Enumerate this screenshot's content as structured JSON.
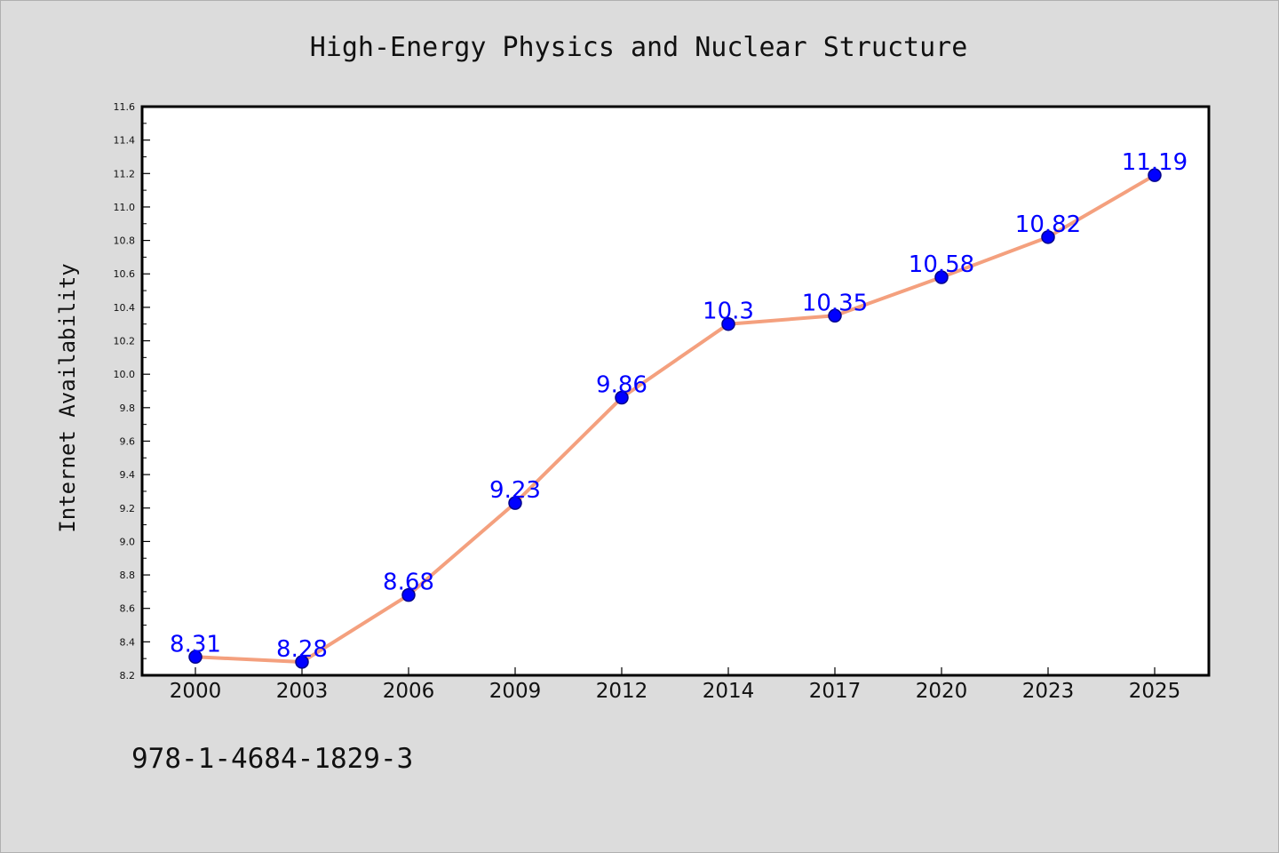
{
  "chart_data": {
    "type": "line",
    "title": "High-Energy Physics and Nuclear Structure",
    "xlabel": "",
    "ylabel": "Internet Availability",
    "categories": [
      "2000",
      "2003",
      "2006",
      "2009",
      "2012",
      "2014",
      "2017",
      "2020",
      "2023",
      "2025"
    ],
    "series": [
      {
        "values": [
          8.31,
          8.28,
          8.68,
          9.23,
          9.86,
          10.3,
          10.35,
          10.58,
          10.82,
          11.19
        ]
      }
    ],
    "data_labels": [
      "8.31",
      "8.28",
      "8.68",
      "9.23",
      "9.86",
      "10.3",
      "10.35",
      "10.58",
      "10.82",
      "11.19"
    ],
    "ylim": [
      8.2,
      11.6
    ],
    "yticks": [
      "8.2",
      "8.4",
      "8.6",
      "8.8",
      "9.0",
      "9.2",
      "9.4",
      "9.6",
      "9.8",
      "10.0",
      "10.2",
      "10.4",
      "10.6",
      "10.8",
      "11.0",
      "11.2",
      "11.4",
      "11.6"
    ],
    "grid": false,
    "legend": "none",
    "colors": {
      "line": "#f4a07e",
      "marker": "#0000ff",
      "marker_edge": "#00008b",
      "label": "#0000ff",
      "plot_bg": "#ffffff",
      "page_bg": "#dcdcdc"
    }
  },
  "footer": {
    "isbn": "978-1-4684-1829-3"
  }
}
